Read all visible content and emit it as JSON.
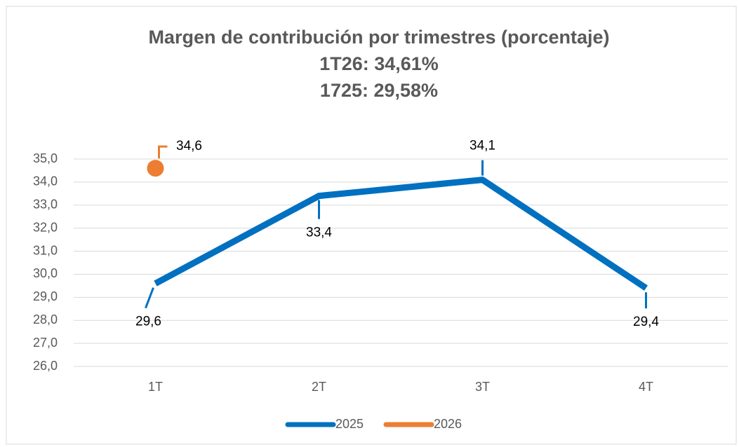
{
  "chart_data": {
    "type": "line",
    "title": "Margen de contribución por trimestres (porcentaje)",
    "subtitle": [
      "1T26: 34,61%",
      "1725: 29,58%"
    ],
    "categories": [
      "1T",
      "2T",
      "3T",
      "4T"
    ],
    "series": [
      {
        "name": "2025",
        "color": "#0070c0",
        "values": [
          29.6,
          33.4,
          34.1,
          29.4
        ],
        "value_labels": [
          "29,6",
          "33,4",
          "34,1",
          "29,4"
        ]
      },
      {
        "name": "2026",
        "color": "#ed7d31",
        "values": [
          34.6,
          null,
          null,
          null
        ],
        "value_labels": [
          "34,6",
          null,
          null,
          null
        ]
      }
    ],
    "ylim": [
      26,
      35
    ],
    "yticks": [
      {
        "value": 26,
        "label": "26,0"
      },
      {
        "value": 27,
        "label": "27,0"
      },
      {
        "value": 28,
        "label": "28,0"
      },
      {
        "value": 29,
        "label": "29,0"
      },
      {
        "value": 30,
        "label": "30,0"
      },
      {
        "value": 31,
        "label": "31,0"
      },
      {
        "value": 32,
        "label": "32,0"
      },
      {
        "value": 33,
        "label": "33,0"
      },
      {
        "value": 34,
        "label": "34,0"
      },
      {
        "value": 35,
        "label": "35,0"
      }
    ],
    "grid": true,
    "legend": "bottom"
  }
}
